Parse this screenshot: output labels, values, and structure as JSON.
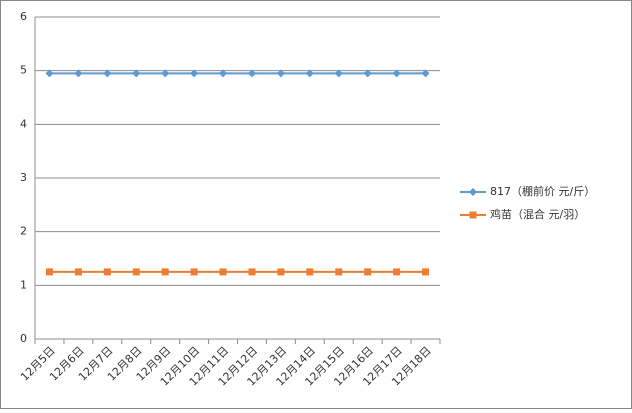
{
  "chart_data": {
    "type": "line",
    "categories": [
      "12月5日",
      "12月6日",
      "12月7日",
      "12月8日",
      "12月9日",
      "12月10日",
      "12月11日",
      "12月12日",
      "12月13日",
      "12月14日",
      "12月15日",
      "12月16日",
      "12月17日",
      "12月18日"
    ],
    "series": [
      {
        "name": "817（棚前价 元/斤）",
        "color": "#5b9bd5",
        "marker": "diamond",
        "values": [
          4.95,
          4.95,
          4.95,
          4.95,
          4.95,
          4.95,
          4.95,
          4.95,
          4.95,
          4.95,
          4.95,
          4.95,
          4.95,
          4.95
        ]
      },
      {
        "name": "鸡苗（混合 元/羽）",
        "color": "#ed7d31",
        "marker": "square",
        "values": [
          1.25,
          1.25,
          1.25,
          1.25,
          1.25,
          1.25,
          1.25,
          1.25,
          1.25,
          1.25,
          1.25,
          1.25,
          1.25,
          1.25
        ]
      }
    ],
    "ylim": [
      0,
      6
    ],
    "yticks": [
      0,
      1,
      2,
      3,
      4,
      5,
      6
    ],
    "grid": true,
    "legend": "right"
  }
}
